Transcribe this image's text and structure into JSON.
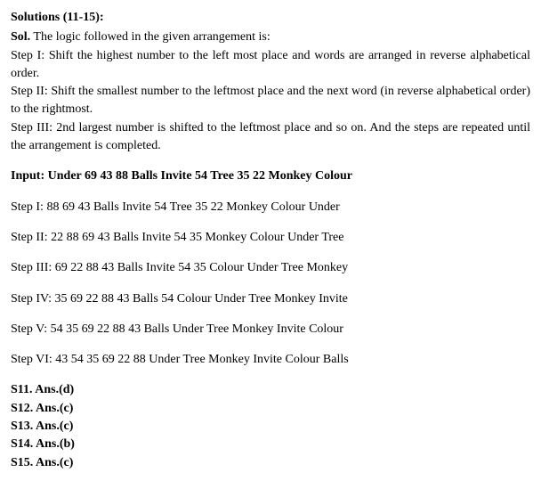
{
  "header": {
    "title": "Solutions (11-15):",
    "sol_label": "Sol.",
    "intro": " The logic followed in the given arrangement is:",
    "step1": "Step I: Shift the highest number to the left most place and words are arranged in reverse alphabetical order.",
    "step2": "Step II: Shift the smallest number to the leftmost place and the next word (in reverse alphabetical order) to the rightmost.",
    "step3": "Step III: 2nd largest number is shifted to the leftmost place and so on. And the steps are repeated until the arrangement is completed."
  },
  "input": {
    "label": "Input: Under 69 43 88 Balls Invite 54 Tree 35 22 Monkey Colour"
  },
  "steps": {
    "s1": "Step I: 88 69 43 Balls Invite 54 Tree 35 22 Monkey Colour Under",
    "s2": "Step II: 22 88 69 43 Balls Invite 54 35 Monkey Colour Under Tree",
    "s3": "Step III: 69 22 88 43 Balls Invite 54 35 Colour Under Tree Monkey",
    "s4": "Step IV: 35 69 22 88 43 Balls 54 Colour Under Tree Monkey Invite",
    "s5": "Step V: 54 35 69 22 88 43 Balls Under Tree Monkey Invite Colour",
    "s6": "Step VI: 43 54 35 69 22 88 Under Tree Monkey Invite Colour Balls"
  },
  "answers": {
    "a11": "S11. Ans.(d)",
    "a12": "S12. Ans.(c)",
    "a13": "S13. Ans.(c)",
    "a14": "S14. Ans.(b)",
    "a15": "S15. Ans.(c)"
  }
}
